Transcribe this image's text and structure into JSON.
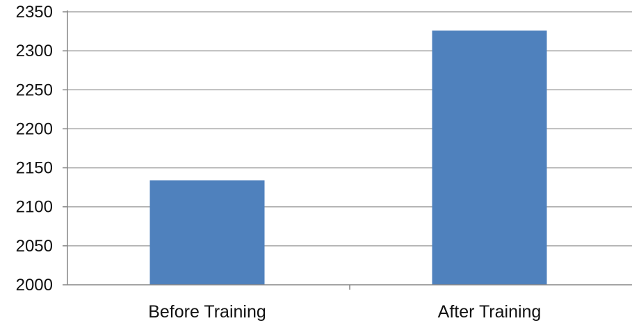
{
  "chart_data": {
    "type": "bar",
    "categories": [
      "Before Training",
      "After Training"
    ],
    "values": [
      2134,
      2326
    ],
    "ylim": [
      2000,
      2350
    ],
    "yticks": [
      "2000",
      "2050",
      "2100",
      "2150",
      "2200",
      "2250",
      "2300",
      "2350"
    ],
    "ytick_values": [
      2000,
      2050,
      2100,
      2150,
      2200,
      2250,
      2300,
      2350
    ],
    "title": "",
    "xlabel": "",
    "ylabel": "",
    "grid": true,
    "legend": "none",
    "bar_color": "#4f81bd",
    "grid_color": "#a6a6a6"
  }
}
